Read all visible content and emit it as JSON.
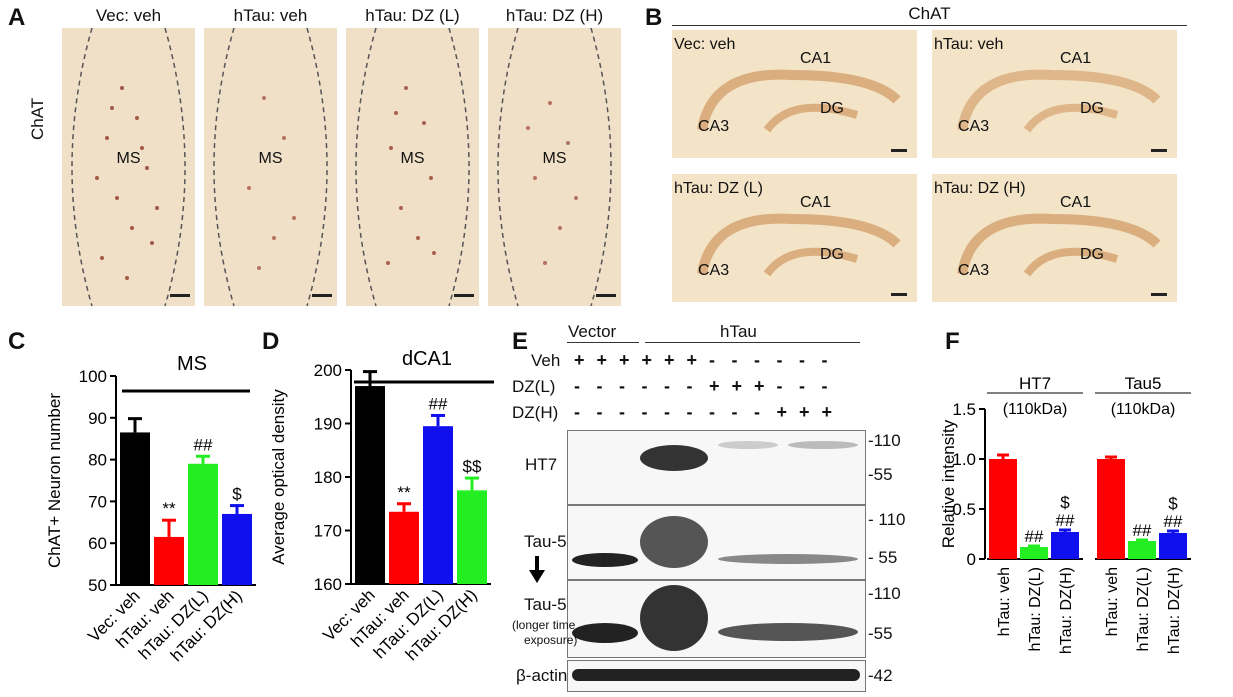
{
  "panels": {
    "A": "A",
    "B": "B",
    "C": "C",
    "D": "D",
    "E": "E",
    "F": "F"
  },
  "panel_a": {
    "row_label": "ChAT",
    "region": "MS",
    "titles": [
      "Vec: veh",
      "hTau: veh",
      "hTau: DZ (L)",
      "hTau: DZ (H)"
    ]
  },
  "panel_b": {
    "title": "ChAT",
    "images": [
      {
        "title": "Vec: veh",
        "ca1": "CA1",
        "ca3": "CA3",
        "dg": "DG"
      },
      {
        "title": "hTau: veh",
        "ca1": "CA1",
        "ca3": "CA3",
        "dg": "DG"
      },
      {
        "title": "hTau: DZ (L)",
        "ca1": "CA1",
        "ca3": "CA3",
        "dg": "DG"
      },
      {
        "title": "hTau: DZ (H)",
        "ca1": "CA1",
        "ca3": "CA3",
        "dg": "DG"
      }
    ]
  },
  "panel_e": {
    "group_vector": "Vector",
    "group_htau": "hTau",
    "rows": [
      {
        "label": "Veh",
        "signs": [
          "+",
          "+",
          "+",
          "+",
          "+",
          "+",
          "-",
          "-",
          "-",
          "-",
          "-",
          "-"
        ]
      },
      {
        "label": "DZ(L)",
        "signs": [
          "-",
          "-",
          "-",
          "-",
          "-",
          "-",
          "+",
          "+",
          "+",
          "-",
          "-",
          "-"
        ]
      },
      {
        "label": "DZ(H)",
        "signs": [
          "-",
          "-",
          "-",
          "-",
          "-",
          "-",
          "-",
          "-",
          "-",
          "+",
          "+",
          "+"
        ]
      }
    ],
    "blots": [
      {
        "label": "HT7",
        "markers": [
          "-110",
          "-55"
        ]
      },
      {
        "label": "Tau-5",
        "markers": [
          "- 110",
          "- 55"
        ]
      },
      {
        "label": "Tau-5",
        "sublabel_1": "(longer time",
        "sublabel_2": "exposure)",
        "markers": [
          "-110",
          "-55"
        ]
      },
      {
        "label": "β-actin",
        "markers": [
          "-42"
        ]
      }
    ]
  },
  "colors": {
    "black": "#000000",
    "red": "#ff0000",
    "green": "#22ee22",
    "blue": "#1010ee",
    "tissue": "#f1e0c8"
  },
  "chart_data": [
    {
      "type": "bar",
      "panel": "C",
      "title": "MS",
      "ylabel": "ChAT+ Neuron number",
      "ylim": [
        50,
        100
      ],
      "yticks": [
        "50",
        "60",
        "70",
        "80",
        "90",
        "100"
      ],
      "categories": [
        "Vec: veh",
        "hTau: veh",
        "hTau: DZ(L)",
        "hTau: DZ(H)"
      ],
      "values": [
        86.5,
        61.5,
        79,
        67
      ],
      "errors": [
        3.3,
        4,
        1.8,
        2
      ],
      "colors": [
        "#000000",
        "#ff0000",
        "#22ee22",
        "#1010ee"
      ],
      "annotations": [
        "",
        "**",
        "##",
        "$"
      ]
    },
    {
      "type": "bar",
      "panel": "D",
      "title": "dCA1",
      "ylabel": "Average optical density",
      "ylim": [
        160,
        200
      ],
      "yticks": [
        "160",
        "170",
        "180",
        "190",
        "200"
      ],
      "categories": [
        "Vec: veh",
        "hTau: veh",
        "hTau: DZ(L)",
        "hTau: DZ(H)"
      ],
      "values": [
        197,
        173.5,
        189.5,
        177.5
      ],
      "errors": [
        2.7,
        1.5,
        2,
        2.3
      ],
      "colors": [
        "#000000",
        "#ff0000",
        "#1010ee",
        "#22ee22"
      ],
      "annotations": [
        "",
        "**",
        "##",
        "$$"
      ]
    },
    {
      "type": "bar",
      "panel": "F",
      "ylabel": "Relative intensity",
      "ylim": [
        0,
        1.5
      ],
      "yticks": [
        "0",
        "0.5",
        "1.0",
        "1.5"
      ],
      "groups": [
        {
          "title": "HT7",
          "subtitle": "(110kDa)"
        },
        {
          "title": "Tau5",
          "subtitle": "(110kDa)"
        }
      ],
      "categories": [
        "hTau: veh",
        "hTau: DZ(L)",
        "hTau: DZ(H)"
      ],
      "series": [
        {
          "values": [
            1.0,
            0.12,
            0.27
          ],
          "errors": [
            0.04,
            0.01,
            0.02
          ],
          "annotations": [
            "",
            "##",
            "##"
          ],
          "annotations_top": [
            "",
            "",
            "$"
          ]
        },
        {
          "values": [
            1.0,
            0.18,
            0.26
          ],
          "errors": [
            0.02,
            0.01,
            0.02
          ],
          "annotations": [
            "",
            "##",
            "##"
          ],
          "annotations_top": [
            "",
            "",
            "$"
          ]
        }
      ],
      "colors": [
        "#ff0000",
        "#22ee22",
        "#1010ee"
      ]
    }
  ]
}
